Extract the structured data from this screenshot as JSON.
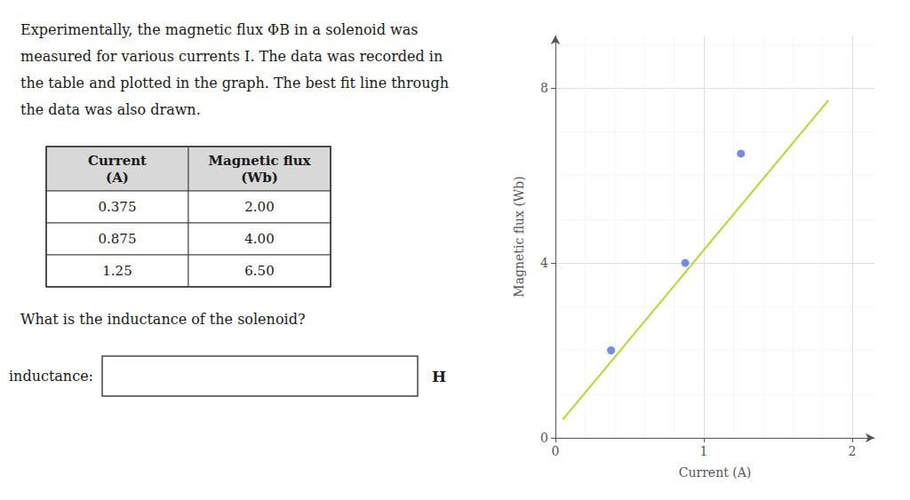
{
  "chart_data": {
    "type": "scatter",
    "paragraph": [
      "Experimentally, the magnetic flux ΦB in a solenoid was",
      "measured for various currents I. The data was recorded in",
      "the table and plotted in the graph. The best fit line through",
      "the data was also drawn."
    ],
    "table": {
      "columns": [
        "Current\n(A)",
        "Magnetic flux\n(Wb)"
      ],
      "rows": [
        [
          "0.375",
          "2.00"
        ],
        [
          "0.875",
          "4.00"
        ],
        [
          "1.25",
          "6.50"
        ]
      ]
    },
    "question": "What is the inductance of the solenoid?",
    "input_label": "inductance:",
    "unit_label": "H",
    "xlabel": "Current (A)",
    "ylabel": "Magnetic flux (Wb)",
    "series": [
      {
        "type": "scatter",
        "x": [
          0.375,
          0.875,
          1.25
        ],
        "values": [
          2.0,
          4.0,
          6.5
        ]
      },
      {
        "type": "line",
        "x": [
          0.05,
          1.84
        ],
        "values": [
          0.42,
          7.72
        ]
      }
    ],
    "xlim": [
      0,
      2.15
    ],
    "xticks": [
      0,
      1,
      2
    ],
    "ylim": [
      0,
      9.2
    ],
    "yticks": [
      0,
      4,
      8
    ],
    "grid": true
  }
}
